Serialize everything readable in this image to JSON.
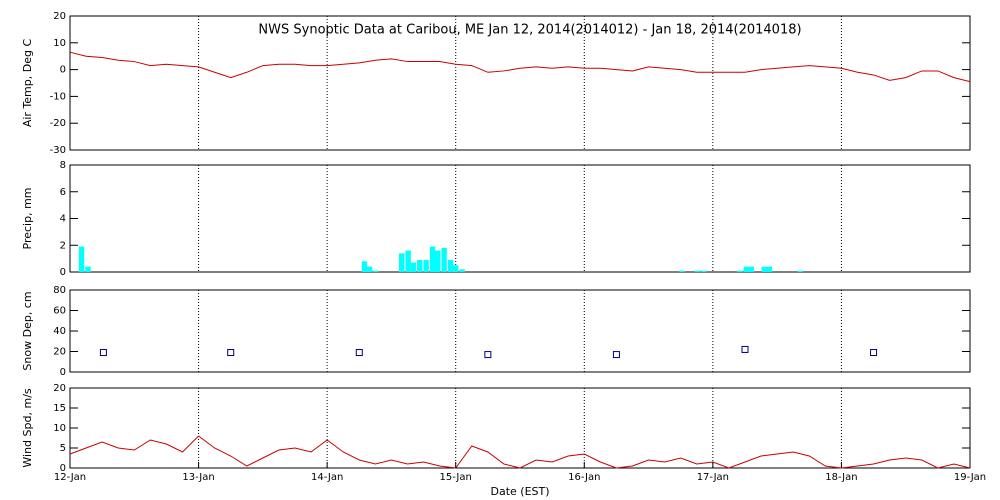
{
  "chart_data": [
    {
      "type": "line",
      "title": "NWS Synoptic Data at Caribou, ME   Jan 12, 2014(2014012) - Jan 18, 2014(2014018)",
      "ylabel": "Air Temp, Deg C",
      "color": "#cc0000",
      "x": [
        0,
        0.125,
        0.25,
        0.375,
        0.5,
        0.625,
        0.75,
        0.875,
        1,
        1.125,
        1.25,
        1.375,
        1.5,
        1.625,
        1.75,
        1.875,
        2,
        2.125,
        2.25,
        2.375,
        2.5,
        2.625,
        2.75,
        2.875,
        3,
        3.125,
        3.25,
        3.375,
        3.5,
        3.625,
        3.75,
        3.875,
        4,
        4.125,
        4.25,
        4.375,
        4.5,
        4.625,
        4.75,
        4.875,
        5,
        5.125,
        5.25,
        5.375,
        5.5,
        5.625,
        5.75,
        5.875,
        6,
        6.125,
        6.25,
        6.375,
        6.5,
        6.625,
        6.75,
        6.875,
        7
      ],
      "values": [
        6.5,
        5,
        4.5,
        3.5,
        3,
        1.5,
        2,
        1.5,
        1,
        -1,
        -3,
        -1,
        1.5,
        2,
        2,
        1.5,
        1.5,
        2,
        2.5,
        3.5,
        4,
        3,
        3,
        3,
        2,
        1.5,
        -1,
        -0.5,
        0.5,
        1,
        0.5,
        1,
        0.5,
        0.5,
        0,
        -0.5,
        1,
        0.5,
        0,
        -1,
        -1,
        -1,
        -1,
        0,
        0.5,
        1,
        1.5,
        1,
        0.5,
        -1,
        -2,
        -4,
        -3,
        -0.5,
        -0.5,
        -3,
        -4.5
      ],
      "ylim": [
        -30,
        20
      ],
      "yticks": [
        -30,
        -20,
        -10,
        0,
        10,
        20
      ]
    },
    {
      "type": "bar",
      "ylabel": "Precip, mm",
      "color": "#00ffff",
      "x": [
        0.09,
        0.14,
        2.29,
        2.33,
        2.38,
        2.58,
        2.63,
        2.67,
        2.72,
        2.77,
        2.82,
        2.86,
        2.91,
        2.96,
        3.0,
        3.05,
        4.76,
        4.88,
        4.93,
        5.21,
        5.26,
        5.3,
        5.4,
        5.44,
        5.68
      ],
      "values": [
        1.9,
        0.4,
        0.8,
        0.4,
        0.1,
        1.4,
        1.6,
        0.7,
        0.9,
        0.9,
        1.9,
        1.6,
        1.8,
        0.9,
        0.5,
        0.2,
        0.1,
        0.1,
        0.1,
        0.1,
        0.4,
        0.4,
        0.4,
        0.4,
        0.1
      ],
      "ylim": [
        0,
        8
      ],
      "yticks": [
        0,
        2,
        4,
        6,
        8
      ]
    },
    {
      "type": "scatter",
      "ylabel": "Snow Dep, cm",
      "color": "#000080",
      "x": [
        0.26,
        1.25,
        2.25,
        3.25,
        4.25,
        5.25,
        6.25
      ],
      "values": [
        19,
        19,
        19,
        17,
        17,
        22,
        19
      ],
      "ylim": [
        0,
        80
      ],
      "yticks": [
        0,
        20,
        40,
        60,
        80
      ]
    },
    {
      "type": "line",
      "ylabel": "Wind Spd, m/s",
      "xlabel": "Date (EST)",
      "color": "#cc0000",
      "x": [
        0,
        0.125,
        0.25,
        0.375,
        0.5,
        0.625,
        0.75,
        0.875,
        1,
        1.125,
        1.25,
        1.375,
        1.5,
        1.625,
        1.75,
        1.875,
        2,
        2.125,
        2.25,
        2.375,
        2.5,
        2.625,
        2.75,
        2.875,
        3,
        3.125,
        3.25,
        3.375,
        3.5,
        3.625,
        3.75,
        3.875,
        4,
        4.125,
        4.25,
        4.375,
        4.5,
        4.625,
        4.75,
        4.875,
        5,
        5.125,
        5.25,
        5.375,
        5.5,
        5.625,
        5.75,
        5.875,
        6,
        6.125,
        6.25,
        6.375,
        6.5,
        6.625,
        6.75,
        6.875,
        7
      ],
      "values": [
        3.5,
        5,
        6.5,
        5,
        4.5,
        7,
        6,
        4,
        8,
        5,
        3,
        0.5,
        2.5,
        4.5,
        5,
        4,
        7,
        4,
        2,
        1,
        2,
        1,
        1.5,
        0.5,
        0,
        5.5,
        4,
        1,
        0,
        2,
        1.5,
        3,
        3.5,
        1.5,
        0,
        0.5,
        2,
        1.5,
        2.5,
        1,
        1.5,
        0,
        1.5,
        3,
        3.5,
        4,
        3,
        0.5,
        0,
        0.5,
        1,
        2,
        2.5,
        2,
        0,
        1,
        0
      ],
      "ylim": [
        0,
        20
      ],
      "yticks": [
        0,
        5,
        10,
        15,
        20
      ],
      "xlim": [
        0,
        7
      ],
      "xticks": [
        {
          "value": 0,
          "label": "12-Jan"
        },
        {
          "value": 1,
          "label": "13-Jan"
        },
        {
          "value": 2,
          "label": "14-Jan"
        },
        {
          "value": 3,
          "label": "15-Jan"
        },
        {
          "value": 4,
          "label": "16-Jan"
        },
        {
          "value": 5,
          "label": "17-Jan"
        },
        {
          "value": 6,
          "label": "18-Jan"
        },
        {
          "value": 7,
          "label": "19-Jan"
        }
      ],
      "grid": true
    }
  ]
}
